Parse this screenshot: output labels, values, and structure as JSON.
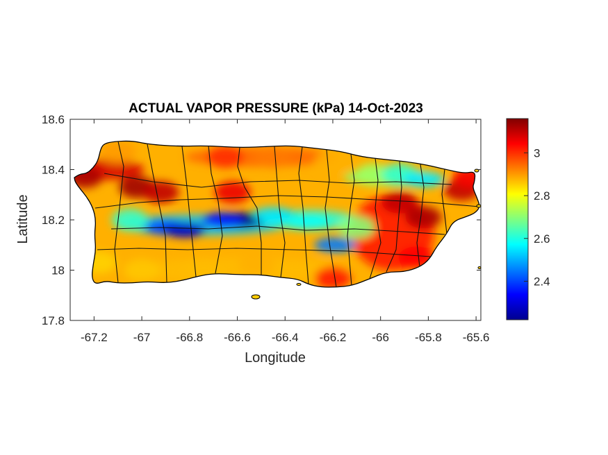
{
  "chart_data": {
    "type": "heatmap",
    "title": "ACTUAL VAPOR PRESSURE (kPa) 14-Oct-2023",
    "xlabel": "Longitude",
    "ylabel": "Latitude",
    "xlim": [
      -67.3,
      -65.58
    ],
    "ylim": [
      17.8,
      18.6
    ],
    "xticks": [
      -67.2,
      -67,
      -66.8,
      -66.6,
      -66.4,
      -66.2,
      -66,
      -65.8,
      -65.6
    ],
    "xtick_labels": [
      "-67.2",
      "-67",
      "-66.8",
      "-66.6",
      "-66.4",
      "-66.2",
      "-66",
      "-65.8",
      "-65.6"
    ],
    "yticks": [
      17.8,
      18,
      18.2,
      18.4,
      18.6
    ],
    "ytick_labels": [
      "17.8",
      "18",
      "18.2",
      "18.4",
      "18.6"
    ],
    "colorbar": {
      "colormap": "jet",
      "range": [
        2.22,
        3.16
      ],
      "ticks": [
        2.4,
        2.6,
        2.8,
        3.0
      ],
      "tick_labels": [
        "2.4",
        "2.6",
        "2.8",
        "3"
      ]
    },
    "grid": false,
    "hotspots": [
      {
        "lon": -67.24,
        "lat": 18.37,
        "value": 3.12
      },
      {
        "lon": -67.02,
        "lat": 18.33,
        "value": 3.13
      },
      {
        "lon": -66.92,
        "lat": 18.31,
        "value": 3.1
      },
      {
        "lon": -66.62,
        "lat": 18.31,
        "value": 3.06
      },
      {
        "lon": -65.92,
        "lat": 18.27,
        "value": 3.1
      },
      {
        "lon": -65.82,
        "lat": 18.21,
        "value": 3.12
      },
      {
        "lon": -65.66,
        "lat": 18.32,
        "value": 3.1
      },
      {
        "lon": -65.62,
        "lat": 18.37,
        "value": 3.05
      },
      {
        "lon": -65.85,
        "lat": 18.05,
        "value": 3.04
      },
      {
        "lon": -66.2,
        "lat": 17.97,
        "value": 3.02
      },
      {
        "lon": -66.65,
        "lat": 18.45,
        "value": 3.0
      },
      {
        "lon": -66.9,
        "lat": 18.17,
        "value": 2.4
      },
      {
        "lon": -66.82,
        "lat": 18.16,
        "value": 2.28
      },
      {
        "lon": -66.58,
        "lat": 18.2,
        "value": 2.22
      },
      {
        "lon": -66.66,
        "lat": 18.2,
        "value": 2.35
      },
      {
        "lon": -66.45,
        "lat": 18.22,
        "value": 2.55
      },
      {
        "lon": -66.3,
        "lat": 18.19,
        "value": 2.58
      },
      {
        "lon": -66.19,
        "lat": 18.1,
        "value": 2.45
      },
      {
        "lon": -66.1,
        "lat": 18.17,
        "value": 2.7
      },
      {
        "lon": -66.03,
        "lat": 18.38,
        "value": 2.72
      },
      {
        "lon": -65.92,
        "lat": 18.38,
        "value": 2.62
      },
      {
        "lon": -65.82,
        "lat": 18.36,
        "value": 2.55
      },
      {
        "lon": -67.05,
        "lat": 18.2,
        "value": 2.62
      },
      {
        "lon": -67.18,
        "lat": 18.03,
        "value": 2.85
      },
      {
        "lon": -67.0,
        "lat": 18.0,
        "value": 2.86
      },
      {
        "lon": -66.75,
        "lat": 18.0,
        "value": 2.87
      },
      {
        "lon": -66.52,
        "lat": 18.02,
        "value": 2.88
      },
      {
        "lon": -66.45,
        "lat": 18.45,
        "value": 2.93
      },
      {
        "lon": -66.2,
        "lat": 18.43,
        "value": 2.88
      },
      {
        "lon": -67.1,
        "lat": 18.47,
        "value": 2.9
      }
    ]
  }
}
